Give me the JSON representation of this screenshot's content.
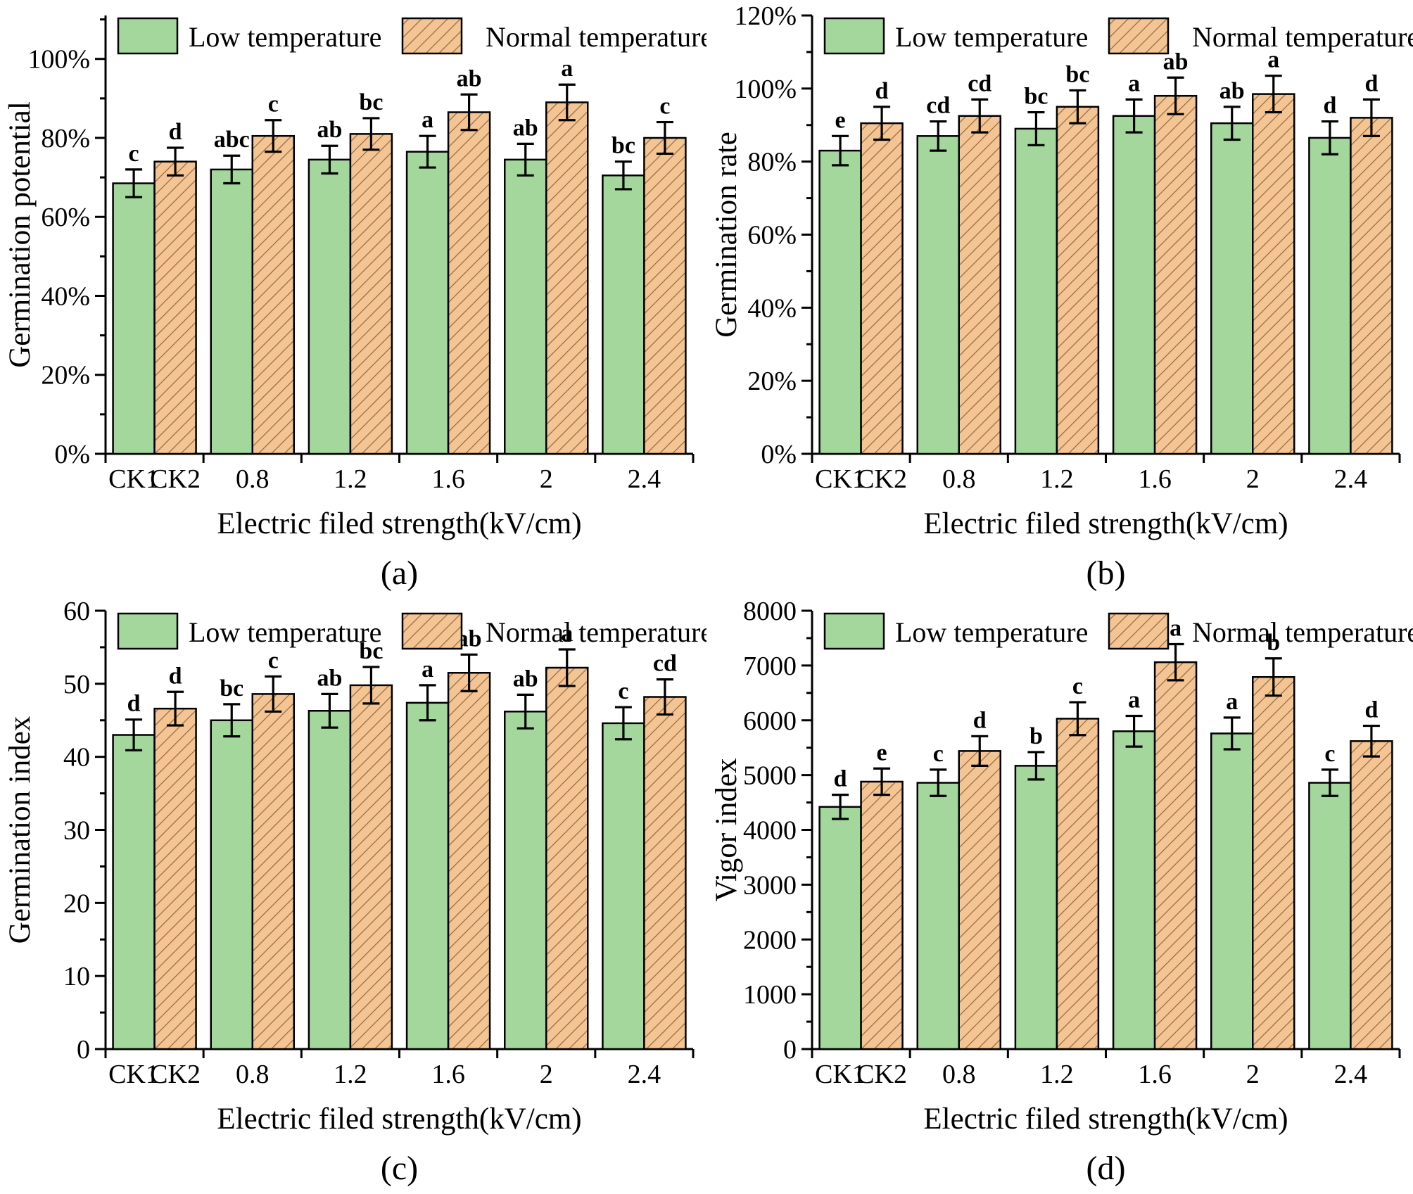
{
  "figure": {
    "background": "#ffffff",
    "colors": {
      "low_fill": "#a3d79c",
      "normal_fill": "#f5c493",
      "hatch_line": "#8d6b45",
      "bar_border": "#000000",
      "axis": "#000000",
      "text": "#000000"
    },
    "legend": {
      "low_label": "Low temperature",
      "normal_label": "Normal temperature"
    }
  },
  "chart_data": [
    {
      "id": "a",
      "type": "bar",
      "panel_label": "(a)",
      "ylabel": "Germination potential",
      "xlabel": "Electric filed strength(kV/cm)",
      "axis_max": 111,
      "minor_step": 10,
      "yticks": [
        [
          0,
          "0%"
        ],
        [
          20,
          "20%"
        ],
        [
          40,
          "40%"
        ],
        [
          60,
          "60%"
        ],
        [
          80,
          "80%"
        ],
        [
          100,
          "100%"
        ]
      ],
      "group_labels": [
        [
          "CK1",
          "CK2"
        ],
        [
          "0.8"
        ],
        [
          "1.2"
        ],
        [
          "1.6"
        ],
        [
          "2"
        ],
        [
          "2.4"
        ]
      ],
      "series": [
        {
          "name": "Low temperature",
          "style": "low",
          "values": [
            68.5,
            72,
            74.5,
            76.5,
            74.5,
            70.5
          ],
          "errors": [
            3.5,
            3.5,
            3.5,
            4,
            4,
            3.5
          ],
          "letters": [
            "c",
            "abc",
            "ab",
            "a",
            "ab",
            "bc"
          ]
        },
        {
          "name": "Normal temperature",
          "style": "normal",
          "values": [
            74,
            80.5,
            81,
            86.5,
            89,
            80
          ],
          "errors": [
            3.5,
            4,
            4,
            4.5,
            4.5,
            4
          ],
          "letters": [
            "d",
            "c",
            "bc",
            "ab",
            "a",
            "c"
          ]
        }
      ]
    },
    {
      "id": "b",
      "type": "bar",
      "panel_label": "(b)",
      "ylabel": "Germination rate",
      "xlabel": "Electric filed strength(kV/cm)",
      "axis_max": 120,
      "minor_step": 10,
      "yticks": [
        [
          0,
          "0%"
        ],
        [
          20,
          "20%"
        ],
        [
          40,
          "40%"
        ],
        [
          60,
          "60%"
        ],
        [
          80,
          "80%"
        ],
        [
          100,
          "100%"
        ],
        [
          120,
          "120%"
        ]
      ],
      "group_labels": [
        [
          "CK1",
          "CK2"
        ],
        [
          "0.8"
        ],
        [
          "1.2"
        ],
        [
          "1.6"
        ],
        [
          "2"
        ],
        [
          "2.4"
        ]
      ],
      "series": [
        {
          "name": "Low temperature",
          "style": "low",
          "values": [
            83,
            87,
            89,
            92.5,
            90.5,
            86.5
          ],
          "errors": [
            4,
            4,
            4.5,
            4.5,
            4.5,
            4.5
          ],
          "letters": [
            "e",
            "cd",
            "bc",
            "a",
            "ab",
            "d"
          ]
        },
        {
          "name": "Normal temperature",
          "style": "normal",
          "values": [
            90.5,
            92.5,
            95,
            98,
            98.5,
            92
          ],
          "errors": [
            4.5,
            4.5,
            4.5,
            5,
            5,
            5
          ],
          "letters": [
            "d",
            "cd",
            "bc",
            "ab",
            "a",
            "d"
          ]
        }
      ]
    },
    {
      "id": "c",
      "type": "bar",
      "panel_label": "(c)",
      "ylabel": "Germination index",
      "xlabel": "Electric filed strength(kV/cm)",
      "axis_max": 60,
      "minor_step": 5,
      "yticks": [
        [
          0,
          "0"
        ],
        [
          10,
          "10"
        ],
        [
          20,
          "20"
        ],
        [
          30,
          "30"
        ],
        [
          40,
          "40"
        ],
        [
          50,
          "50"
        ],
        [
          60,
          "60"
        ]
      ],
      "group_labels": [
        [
          "CK1",
          "CK2"
        ],
        [
          "0.8"
        ],
        [
          "1.2"
        ],
        [
          "1.6"
        ],
        [
          "2"
        ],
        [
          "2.4"
        ]
      ],
      "series": [
        {
          "name": "Low temperature",
          "style": "low",
          "values": [
            43,
            45,
            46.3,
            47.4,
            46.2,
            44.6
          ],
          "errors": [
            2.1,
            2.2,
            2.3,
            2.4,
            2.3,
            2.2
          ],
          "letters": [
            "d",
            "bc",
            "ab",
            "a",
            "ab",
            "c"
          ]
        },
        {
          "name": "Normal temperature",
          "style": "normal",
          "values": [
            46.6,
            48.6,
            49.8,
            51.5,
            52.2,
            48.2
          ],
          "errors": [
            2.3,
            2.4,
            2.5,
            2.5,
            2.5,
            2.4
          ],
          "letters": [
            "d",
            "c",
            "bc",
            "ab",
            "a",
            "cd"
          ]
        }
      ]
    },
    {
      "id": "d",
      "type": "bar",
      "panel_label": "(d)",
      "ylabel": "Vigor index",
      "xlabel": "Electric filed strength(kV/cm)",
      "axis_max": 8000,
      "minor_step": 500,
      "yticks": [
        [
          0,
          "0"
        ],
        [
          1000,
          "1000"
        ],
        [
          2000,
          "2000"
        ],
        [
          3000,
          "3000"
        ],
        [
          4000,
          "4000"
        ],
        [
          5000,
          "5000"
        ],
        [
          6000,
          "6000"
        ],
        [
          7000,
          "7000"
        ],
        [
          8000,
          "8000"
        ]
      ],
      "group_labels": [
        [
          "CK1",
          "CK2"
        ],
        [
          "0.8"
        ],
        [
          "1.2"
        ],
        [
          "1.6"
        ],
        [
          "2"
        ],
        [
          "2.4"
        ]
      ],
      "series": [
        {
          "name": "Low temperature",
          "style": "low",
          "values": [
            4420,
            4860,
            5170,
            5800,
            5760,
            4860
          ],
          "errors": [
            220,
            240,
            250,
            280,
            290,
            240
          ],
          "letters": [
            "d",
            "c",
            "b",
            "a",
            "a",
            "c"
          ]
        },
        {
          "name": "Normal temperature",
          "style": "normal",
          "values": [
            4880,
            5440,
            6030,
            7060,
            6790,
            5620
          ],
          "errors": [
            240,
            270,
            300,
            330,
            340,
            280
          ],
          "letters": [
            "e",
            "d",
            "c",
            "a",
            "b",
            "d"
          ]
        }
      ]
    }
  ]
}
